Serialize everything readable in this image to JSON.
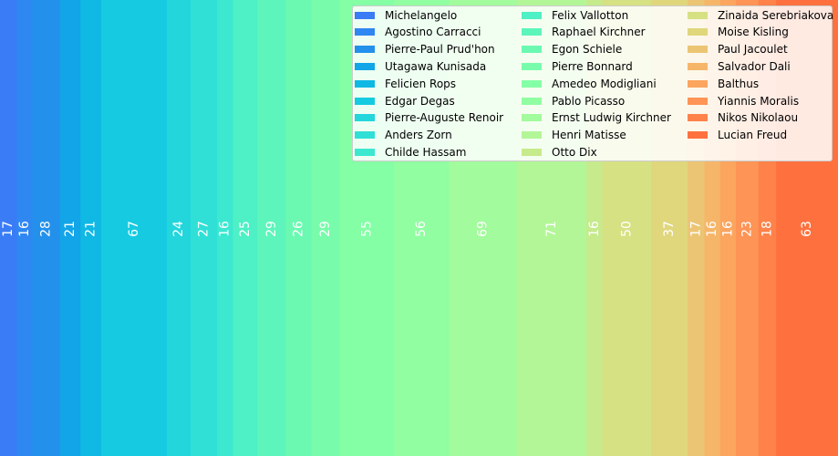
{
  "chart_data": {
    "type": "bar",
    "orientation": "full-height stacked widths",
    "categories": [
      "Michelangelo",
      "Agostino Carracci",
      "Pierre-Paul Prud'hon",
      "Utagawa Kunisada",
      "Felicien Rops",
      "Edgar Degas",
      "Pierre-Auguste Renoir",
      "Anders Zorn",
      "Childe Hassam",
      "Felix Vallotton",
      "Raphael Kirchner",
      "Egon Schiele",
      "Pierre Bonnard",
      "Amedeo Modigliani",
      "Pablo Picasso",
      "Ernst Ludwig Kirchner",
      "Henri Matisse",
      "Otto Dix",
      "Zinaida Serebriakova",
      "Moise Kisling",
      "Paul Jacoulet",
      "Salvador Dali",
      "Balthus",
      "Yiannis Moralis",
      "Nikos Nikolaou",
      "Lucian Freud"
    ],
    "values": [
      17,
      16,
      28,
      21,
      21,
      67,
      24,
      27,
      16,
      25,
      29,
      26,
      29,
      55,
      56,
      69,
      71,
      16,
      50,
      37,
      17,
      16,
      16,
      23,
      18,
      63
    ],
    "colors": [
      "#3a7cf5",
      "#2f87f2",
      "#2391ec",
      "#12a5e8",
      "#10b8e4",
      "#16cbe1",
      "#22d6dc",
      "#30e0d6",
      "#3ce8d0",
      "#4ef0c5",
      "#5df5bb",
      "#6bf9b2",
      "#78fcab",
      "#85ffa6",
      "#90fea1",
      "#a2fb9c",
      "#b3f697",
      "#c6ea8c",
      "#d6e184",
      "#e0d67c",
      "#ecc574",
      "#f6b66a",
      "#fba55f",
      "#fe9455",
      "#fe824a",
      "#fe713e"
    ],
    "legend": {
      "position": "top-right",
      "columns": 3
    },
    "title": "",
    "xlabel": "",
    "ylabel": ""
  }
}
